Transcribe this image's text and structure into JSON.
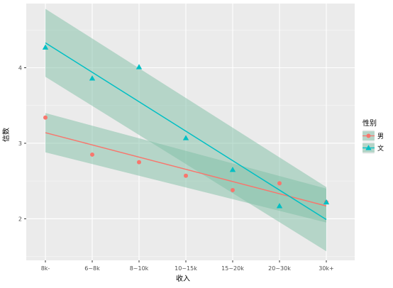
{
  "chart_data": {
    "type": "scatter",
    "xlabel": "收入",
    "ylabel": "信数",
    "categories": [
      "8k-",
      "6~8k",
      "8~10k",
      "10~15k",
      "15~20k",
      "20~30k",
      "30k+"
    ],
    "y_ticks": [
      2,
      3,
      4
    ],
    "ylim": [
      1.45,
      4.85
    ],
    "grid": true,
    "legend": {
      "title": "性别",
      "position": "right"
    },
    "series": [
      {
        "name": "男",
        "color": "#F8766D",
        "marker": "circle",
        "values": [
          3.34,
          2.85,
          2.75,
          2.57,
          2.38,
          2.47,
          2.22
        ],
        "fit": {
          "start": 3.14,
          "end": 2.17,
          "band_lower": [
            2.88,
            1.95
          ],
          "band_upper": [
            3.4,
            2.4
          ]
        }
      },
      {
        "name": "文",
        "color": "#00BFC4",
        "marker": "triangle",
        "values": [
          4.27,
          3.86,
          4.01,
          3.07,
          2.65,
          2.17,
          2.22
        ],
        "fit": {
          "start": 4.33,
          "end": 1.99,
          "band_lower": [
            3.88,
            1.57
          ],
          "band_upper": [
            4.78,
            2.42
          ]
        }
      }
    ]
  }
}
